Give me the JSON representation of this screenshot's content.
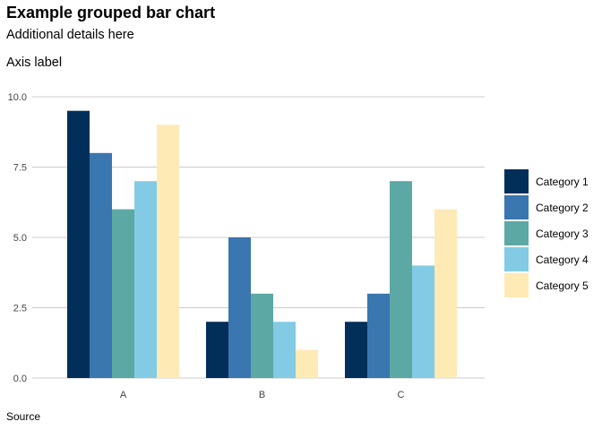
{
  "chart_data": {
    "type": "bar",
    "title": "Example grouped bar chart",
    "subtitle": "Additional details here",
    "ylabel": "Axis label",
    "xlabel": "",
    "caption": "Source",
    "categories": [
      "A",
      "B",
      "C"
    ],
    "series": [
      {
        "name": "Category 1",
        "color": "#012f5a",
        "values": [
          9.5,
          2,
          2
        ]
      },
      {
        "name": "Category 2",
        "color": "#3a76af",
        "values": [
          8,
          5,
          3
        ]
      },
      {
        "name": "Category 3",
        "color": "#5ca8a5",
        "values": [
          6,
          3,
          7
        ]
      },
      {
        "name": "Category 4",
        "color": "#83cbe4",
        "values": [
          7,
          2,
          4
        ]
      },
      {
        "name": "Category 5",
        "color": "#fdeab5",
        "values": [
          9,
          1,
          6
        ]
      }
    ],
    "ylim": [
      0,
      10
    ],
    "yticks": [
      0,
      2.5,
      5,
      7.5,
      10
    ],
    "ytick_labels": [
      "0.0",
      "2.5",
      "5.0",
      "7.5",
      "10.0"
    ],
    "grid": "horizontal",
    "legend_position": "right"
  }
}
